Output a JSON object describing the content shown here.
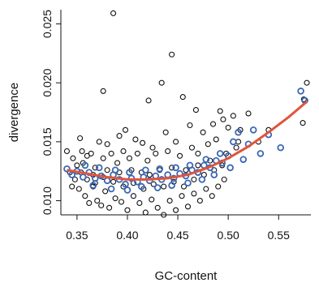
{
  "chart_data": {
    "type": "scatter",
    "xlabel": "GC-content",
    "ylabel": "divergence",
    "xlim": [
      0.334,
      0.582
    ],
    "ylim": [
      0.0088,
      0.0262
    ],
    "xticks": [
      0.35,
      0.4,
      0.45,
      0.5,
      0.55
    ],
    "xtick_labels": [
      "0.35",
      "0.40",
      "0.45",
      "0.50",
      "0.55"
    ],
    "yticks": [
      0.01,
      0.015,
      0.02,
      0.025
    ],
    "ytick_labels": [
      "0.010",
      "0.015",
      "0.020",
      "0.025"
    ],
    "grid": false,
    "legend": "none",
    "colors": {
      "black_points": "#111111",
      "blue_points": "#3a66b5",
      "fit_line": "#e0553a",
      "axes": "#111111"
    },
    "series": [
      {
        "color": "#111111",
        "points": [
          [
            0.386,
            0.0259
          ],
          [
            0.444,
            0.0224
          ],
          [
            0.376,
            0.0193
          ],
          [
            0.434,
            0.02
          ],
          [
            0.421,
            0.0185
          ],
          [
            0.455,
            0.0188
          ],
          [
            0.468,
            0.0177
          ],
          [
            0.492,
            0.0176
          ],
          [
            0.505,
            0.0172
          ],
          [
            0.52,
            0.0174
          ],
          [
            0.578,
            0.02
          ],
          [
            0.575,
            0.0186
          ],
          [
            0.574,
            0.0166
          ],
          [
            0.353,
            0.0153
          ],
          [
            0.355,
            0.0142
          ],
          [
            0.36,
            0.0138
          ],
          [
            0.372,
            0.015
          ],
          [
            0.38,
            0.0148
          ],
          [
            0.392,
            0.0155
          ],
          [
            0.398,
            0.016
          ],
          [
            0.408,
            0.0152
          ],
          [
            0.415,
            0.0149
          ],
          [
            0.425,
            0.0145
          ],
          [
            0.438,
            0.0158
          ],
          [
            0.448,
            0.015
          ],
          [
            0.462,
            0.0164
          ],
          [
            0.475,
            0.0158
          ],
          [
            0.485,
            0.0165
          ],
          [
            0.495,
            0.0169
          ],
          [
            0.5,
            0.0162
          ],
          [
            0.51,
            0.015
          ],
          [
            0.34,
            0.0142
          ],
          [
            0.346,
            0.0136
          ],
          [
            0.35,
            0.013
          ],
          [
            0.343,
            0.0124
          ],
          [
            0.348,
            0.0118
          ],
          [
            0.352,
            0.011
          ],
          [
            0.358,
            0.0104
          ],
          [
            0.362,
            0.0098
          ],
          [
            0.366,
            0.0112
          ],
          [
            0.37,
            0.01
          ],
          [
            0.374,
            0.0096
          ],
          [
            0.378,
            0.0108
          ],
          [
            0.382,
            0.0094
          ],
          [
            0.388,
            0.0102
          ],
          [
            0.394,
            0.0099
          ],
          [
            0.4,
            0.0092
          ],
          [
            0.406,
            0.0104
          ],
          [
            0.412,
            0.0098
          ],
          [
            0.418,
            0.009
          ],
          [
            0.424,
            0.0101
          ],
          [
            0.43,
            0.0094
          ],
          [
            0.436,
            0.0088
          ],
          [
            0.442,
            0.01
          ],
          [
            0.448,
            0.0092
          ],
          [
            0.454,
            0.0104
          ],
          [
            0.46,
            0.0095
          ],
          [
            0.466,
            0.0106
          ],
          [
            0.472,
            0.01
          ],
          [
            0.478,
            0.011
          ],
          [
            0.484,
            0.0104
          ],
          [
            0.49,
            0.0112
          ],
          [
            0.496,
            0.0118
          ],
          [
            0.356,
            0.0132
          ],
          [
            0.364,
            0.014
          ],
          [
            0.368,
            0.0128
          ],
          [
            0.376,
            0.0136
          ],
          [
            0.384,
            0.014
          ],
          [
            0.39,
            0.0132
          ],
          [
            0.396,
            0.0142
          ],
          [
            0.402,
            0.0136
          ],
          [
            0.41,
            0.014
          ],
          [
            0.42,
            0.0134
          ],
          [
            0.428,
            0.014
          ],
          [
            0.44,
            0.0142
          ],
          [
            0.452,
            0.0138
          ],
          [
            0.464,
            0.0145
          ],
          [
            0.47,
            0.014
          ],
          [
            0.48,
            0.0148
          ],
          [
            0.488,
            0.0152
          ],
          [
            0.36,
            0.0118
          ],
          [
            0.368,
            0.0115
          ],
          [
            0.376,
            0.012
          ],
          [
            0.386,
            0.0116
          ],
          [
            0.396,
            0.0112
          ],
          [
            0.406,
            0.0115
          ],
          [
            0.416,
            0.011
          ],
          [
            0.426,
            0.0114
          ],
          [
            0.436,
            0.0112
          ],
          [
            0.446,
            0.0116
          ],
          [
            0.456,
            0.0112
          ],
          [
            0.466,
            0.0118
          ],
          [
            0.476,
            0.0122
          ],
          [
            0.486,
            0.0126
          ],
          [
            0.494,
            0.013
          ],
          [
            0.345,
            0.0112
          ],
          [
            0.354,
            0.0124
          ],
          [
            0.366,
            0.0122
          ],
          [
            0.38,
            0.0126
          ],
          [
            0.392,
            0.0124
          ],
          [
            0.404,
            0.0126
          ],
          [
            0.414,
            0.0124
          ],
          [
            0.422,
            0.0122
          ],
          [
            0.432,
            0.0126
          ],
          [
            0.444,
            0.0128
          ],
          [
            0.458,
            0.0126
          ],
          [
            0.47,
            0.013
          ],
          [
            0.482,
            0.0134
          ],
          [
            0.498,
            0.014
          ],
          [
            0.508,
            0.0145
          ],
          [
            0.512,
            0.016
          ],
          [
            0.53,
            0.015
          ],
          [
            0.54,
            0.016
          ]
        ]
      },
      {
        "color": "#3a66b5",
        "points": [
          [
            0.34,
            0.0127
          ],
          [
            0.345,
            0.0122
          ],
          [
            0.35,
            0.0125
          ],
          [
            0.356,
            0.012
          ],
          [
            0.362,
            0.0124
          ],
          [
            0.368,
            0.0119
          ],
          [
            0.374,
            0.0121
          ],
          [
            0.38,
            0.0117
          ],
          [
            0.386,
            0.0122
          ],
          [
            0.392,
            0.0118
          ],
          [
            0.398,
            0.0114
          ],
          [
            0.404,
            0.0119
          ],
          [
            0.41,
            0.0116
          ],
          [
            0.416,
            0.012
          ],
          [
            0.422,
            0.0117
          ],
          [
            0.428,
            0.0121
          ],
          [
            0.434,
            0.0118
          ],
          [
            0.44,
            0.0122
          ],
          [
            0.446,
            0.0119
          ],
          [
            0.452,
            0.0123
          ],
          [
            0.458,
            0.0121
          ],
          [
            0.464,
            0.0126
          ],
          [
            0.47,
            0.0124
          ],
          [
            0.476,
            0.013
          ],
          [
            0.482,
            0.0128
          ],
          [
            0.488,
            0.0134
          ],
          [
            0.494,
            0.0132
          ],
          [
            0.5,
            0.0138
          ],
          [
            0.505,
            0.015
          ],
          [
            0.51,
            0.0158
          ],
          [
            0.52,
            0.0148
          ],
          [
            0.525,
            0.016
          ],
          [
            0.532,
            0.014
          ],
          [
            0.54,
            0.0156
          ],
          [
            0.552,
            0.0145
          ],
          [
            0.572,
            0.0193
          ],
          [
            0.576,
            0.0185
          ],
          [
            0.358,
            0.013
          ],
          [
            0.372,
            0.0128
          ],
          [
            0.388,
            0.0126
          ],
          [
            0.402,
            0.0124
          ],
          [
            0.418,
            0.0126
          ],
          [
            0.432,
            0.0127
          ],
          [
            0.448,
            0.0128
          ],
          [
            0.462,
            0.013
          ],
          [
            0.478,
            0.0135
          ],
          [
            0.492,
            0.014
          ],
          [
            0.502,
            0.0128
          ],
          [
            0.366,
            0.0113
          ],
          [
            0.384,
            0.011
          ],
          [
            0.4,
            0.0109
          ],
          [
            0.414,
            0.0112
          ],
          [
            0.43,
            0.0111
          ],
          [
            0.444,
            0.0113
          ],
          [
            0.46,
            0.0115
          ],
          [
            0.474,
            0.0118
          ],
          [
            0.486,
            0.0122
          ],
          [
            0.515,
            0.0135
          ]
        ]
      }
    ],
    "fit_line": {
      "color": "#e0553a",
      "x": [
        0.34,
        0.36,
        0.38,
        0.4,
        0.42,
        0.44,
        0.46,
        0.48,
        0.5,
        0.52,
        0.54,
        0.56,
        0.578
      ],
      "y": [
        0.0126,
        0.0123,
        0.012,
        0.0118,
        0.0118,
        0.0119,
        0.0122,
        0.0128,
        0.0136,
        0.0146,
        0.0158,
        0.0171,
        0.0184
      ]
    }
  }
}
